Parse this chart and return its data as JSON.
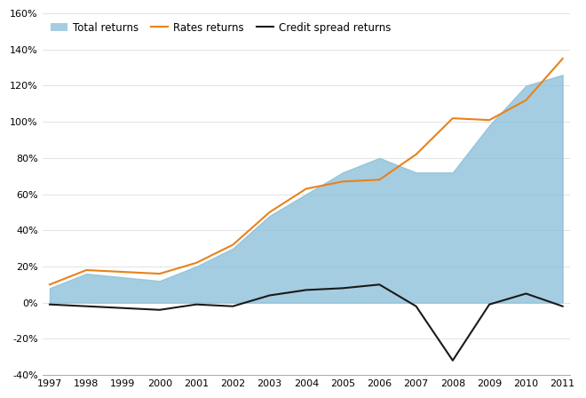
{
  "years": [
    1997,
    1998,
    1999,
    2000,
    2001,
    2002,
    2003,
    2004,
    2005,
    2006,
    2007,
    2008,
    2009,
    2010,
    2011
  ],
  "total_returns": [
    8,
    16,
    14,
    12,
    20,
    30,
    48,
    60,
    72,
    80,
    72,
    72,
    98,
    120,
    126
  ],
  "rates_returns": [
    10,
    18,
    17,
    16,
    22,
    32,
    50,
    63,
    67,
    68,
    82,
    102,
    101,
    112,
    135
  ],
  "credit_returns": [
    -1,
    -2,
    -3,
    -4,
    -1,
    -2,
    4,
    7,
    8,
    10,
    -2,
    -32,
    -1,
    5,
    -2
  ],
  "fill_color": "#87BDD8",
  "fill_alpha": 0.75,
  "rates_color": "#E8821A",
  "credit_color": "#1A1A1A",
  "ylim": [
    -40,
    160
  ],
  "yticks": [
    -40,
    -20,
    0,
    20,
    40,
    60,
    80,
    100,
    120,
    140,
    160
  ],
  "legend_labels": [
    "Total returns",
    "Rates returns",
    "Credit spread returns"
  ],
  "background_color": "#FFFFFF",
  "line_width": 1.5
}
